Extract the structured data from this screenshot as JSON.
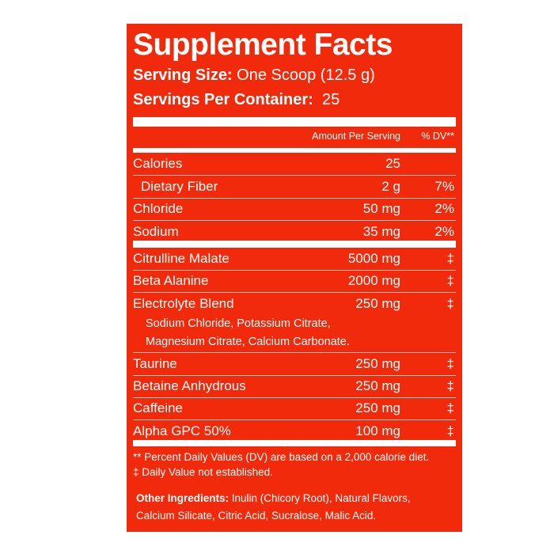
{
  "title": "Supplement Facts",
  "serving_size": {
    "label": "Serving Size:",
    "value": "One Scoop (12.5 g)"
  },
  "servings_per_container": {
    "label": "Servings Per Container:",
    "value": "25"
  },
  "header": {
    "amount": "Amount Per Serving",
    "dv": "% DV**"
  },
  "group1": [
    {
      "name": "Calories",
      "amount": "25",
      "dv": ""
    },
    {
      "name": "Dietary Fiber",
      "amount": "2 g",
      "dv": "7%"
    },
    {
      "name": "Chloride",
      "amount": "50 mg",
      "dv": "2%"
    },
    {
      "name": "Sodium",
      "amount": "35 mg",
      "dv": "2%"
    }
  ],
  "group2": [
    {
      "name": "Citrulline Malate",
      "amount": "5000 mg",
      "dv": "‡"
    },
    {
      "name": "Beta Alanine",
      "amount": "2000 mg",
      "dv": "‡"
    },
    {
      "name": "Electrolyte Blend",
      "amount": "250 mg",
      "dv": "‡",
      "sub": [
        "Sodium Chloride, Potassium Citrate,",
        "Magnesium Citrate, Calcium Carbonate."
      ]
    },
    {
      "name": "Taurine",
      "amount": "250 mg",
      "dv": "‡"
    },
    {
      "name": "Betaine Anhydrous",
      "amount": "250 mg",
      "dv": "‡"
    },
    {
      "name": "Caffeine",
      "amount": "250 mg",
      "dv": "‡"
    },
    {
      "name": "Alpha GPC 50%",
      "amount": "100 mg",
      "dv": "‡"
    }
  ],
  "footnotes": [
    "** Percent Daily Values (DV) are based on a 2,000 calorie diet.",
    "‡ Daily Value not established."
  ],
  "other_ingredients": {
    "label": "Other Ingredients:",
    "line1": "Inulin (Chicory Root), Natural Flavors,",
    "line2": "Calcium Silicate, Citric Acid, Sucralose, Malic Acid."
  },
  "colors": {
    "panel": "#f02a0a",
    "text": "#ffffff"
  }
}
